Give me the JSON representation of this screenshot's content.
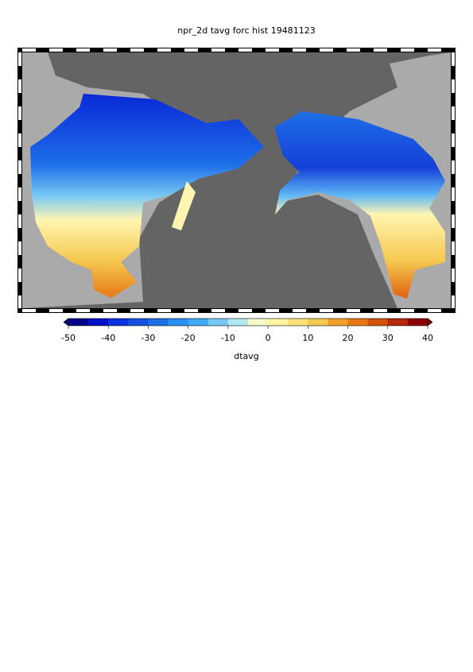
{
  "title": "npr_2d tavg forc hist 19481123",
  "colorbar": {
    "label": "dtavg",
    "lim": [
      -50,
      40
    ],
    "ticks": [
      -50,
      -40,
      -30,
      -20,
      -10,
      0,
      10,
      20,
      30,
      40
    ],
    "colors": [
      "#00008b",
      "#0010c8",
      "#0a30e0",
      "#1450dc",
      "#1e6ee6",
      "#2890f0",
      "#40aaf5",
      "#78c8f5",
      "#b4e8f0",
      "#f5fac8",
      "#fff5a0",
      "#fae178",
      "#f5c850",
      "#f0a028",
      "#e67814",
      "#d2500a",
      "#b42805",
      "#8b0000"
    ]
  }
}
